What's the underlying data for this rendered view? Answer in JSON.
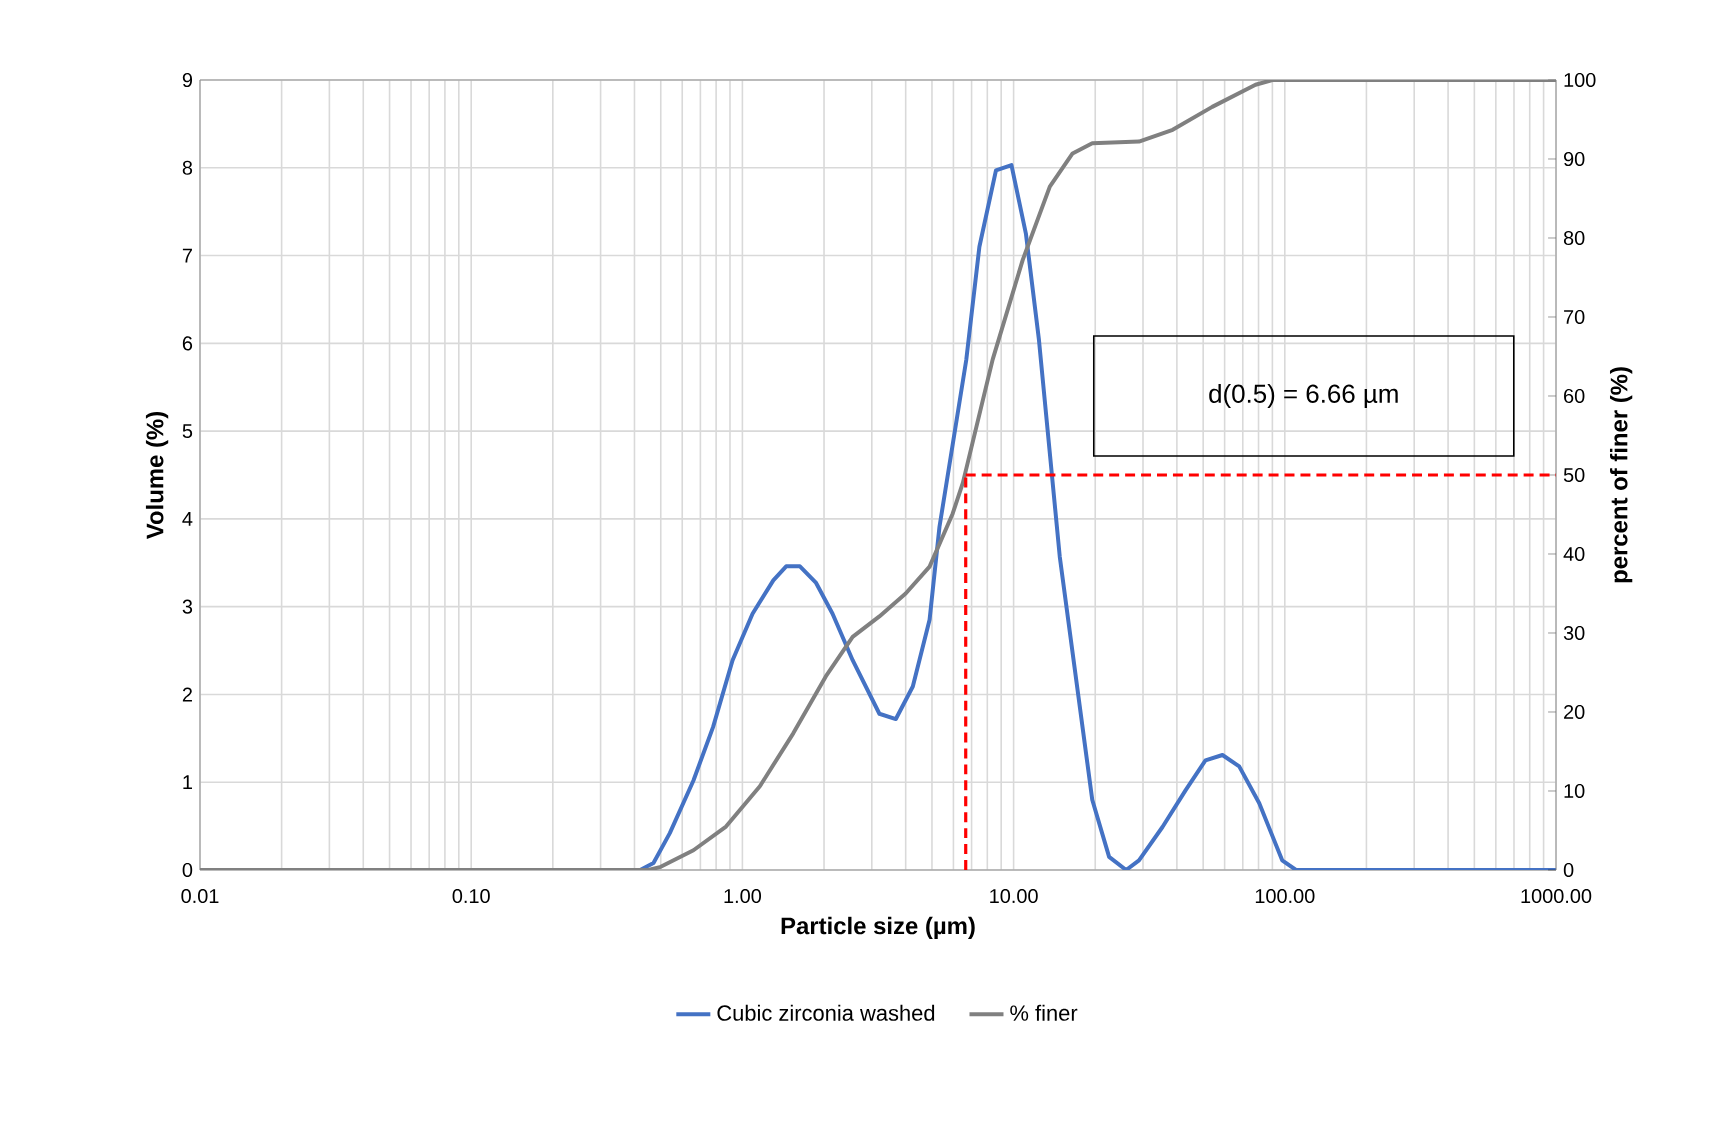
{
  "chart_data": {
    "type": "line",
    "xlabel": "Particle size (µm)",
    "ylabel": "Volume (%)",
    "y2label": "percent of finer (%)",
    "log": "x",
    "grid": true,
    "legend": "bottom",
    "marker": "none",
    "line_style": "solid",
    "xlim": [
      0.01,
      1000
    ],
    "xticks": [
      {
        "value": 0.01,
        "label": "0.01"
      },
      {
        "value": 0.1,
        "label": "0.10"
      },
      {
        "value": 1,
        "label": "1.00"
      },
      {
        "value": 10,
        "label": "10.00"
      },
      {
        "value": 100,
        "label": "100.00"
      },
      {
        "value": 1000,
        "label": "1000.00"
      }
    ],
    "ylim": [
      0,
      9
    ],
    "yticks": [
      0,
      1,
      2,
      3,
      4,
      5,
      6,
      7,
      8,
      9
    ],
    "y2lim": [
      0,
      100
    ],
    "y2ticks": [
      0,
      10,
      20,
      30,
      40,
      50,
      60,
      70,
      80,
      90,
      100
    ],
    "series": [
      {
        "name": "Cubic zirconia washed",
        "color": "#4472c4",
        "x": [
          0.01,
          0.42,
          0.47,
          0.54,
          0.66,
          0.78,
          0.92,
          1.09,
          1.3,
          1.45,
          1.63,
          1.87,
          2.15,
          2.55,
          3.2,
          3.68,
          4.25,
          4.9,
          5.33,
          6.69,
          7.48,
          8.61,
          9.82,
          11.1,
          12.4,
          14.8,
          19.5,
          22.5,
          26,
          29,
          35.4,
          43.1,
          51,
          58.9,
          67.9,
          80.5,
          97.8,
          110,
          1000
        ],
        "values": [
          0,
          0,
          0.08,
          0.42,
          1.02,
          1.63,
          2.39,
          2.92,
          3.3,
          3.46,
          3.46,
          3.27,
          2.92,
          2.39,
          1.78,
          1.72,
          2.09,
          2.85,
          3.91,
          5.81,
          7.1,
          7.97,
          8.03,
          7.25,
          6.04,
          3.57,
          0.8,
          0.15,
          0,
          0.11,
          0.49,
          0.91,
          1.25,
          1.31,
          1.18,
          0.76,
          0.11,
          0,
          0
        ]
      },
      {
        "name": "% finer",
        "color": "#808080",
        "axis": "y2",
        "x": [
          0.01,
          0.45,
          0.5,
          0.66,
          0.87,
          1.16,
          1.54,
          2.03,
          2.55,
          3.2,
          4,
          4.9,
          5.96,
          6.5,
          8.37,
          10.8,
          13.6,
          16.5,
          19.5,
          29,
          38.6,
          54,
          78,
          90,
          1000
        ],
        "values": [
          0,
          0,
          0.4,
          2.5,
          5.5,
          10.6,
          17.3,
          24.5,
          29.5,
          32.1,
          35,
          38.4,
          45.1,
          49,
          64.6,
          77.2,
          86.5,
          90.7,
          92,
          92.2,
          93.7,
          96.6,
          99.4,
          100,
          100
        ]
      }
    ],
    "ref_lines": [
      {
        "axis": "x",
        "value": 6.66,
        "color": "#ff0000",
        "line_style": "dashed"
      },
      {
        "axis": "y2",
        "value": 50,
        "color": "#ff0000",
        "line_style": "dashed"
      }
    ],
    "annotations": [
      "d(0.5) = 6.66 µm"
    ]
  }
}
